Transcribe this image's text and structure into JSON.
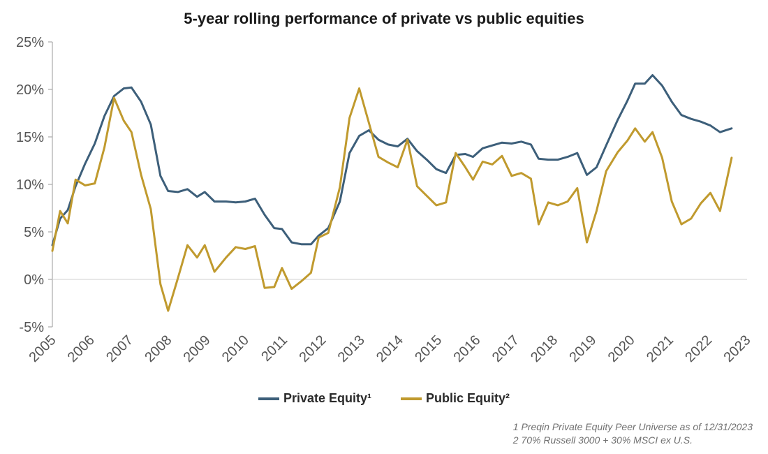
{
  "chart_data": {
    "type": "line",
    "title": "5-year rolling performance of private vs public equities",
    "ylim": [
      -5,
      25
    ],
    "yticks": [
      "25%",
      "20%",
      "15%",
      "10%",
      "5%",
      "0%",
      "-5%"
    ],
    "ytick_values": [
      25,
      20,
      15,
      10,
      5,
      0,
      -5
    ],
    "xlim": [
      2005,
      2023
    ],
    "xticks": [
      "2005",
      "2006",
      "2007",
      "2008",
      "2009",
      "2010",
      "2011",
      "2012",
      "2013",
      "2014",
      "2015",
      "2016",
      "2017",
      "2018",
      "2019",
      "2020",
      "2021",
      "2022",
      "2023"
    ],
    "legend_position": "bottom-center",
    "grid": "zero-line only",
    "series": [
      {
        "name": "Private Equity¹",
        "color": "#3d5f7a",
        "points": [
          [
            2005.0,
            3.6
          ],
          [
            2005.2,
            6.4
          ],
          [
            2005.4,
            7.3
          ],
          [
            2005.6,
            9.8
          ],
          [
            2005.85,
            12.2
          ],
          [
            2006.1,
            14.3
          ],
          [
            2006.35,
            17.2
          ],
          [
            2006.6,
            19.3
          ],
          [
            2006.85,
            20.1
          ],
          [
            2007.05,
            20.2
          ],
          [
            2007.3,
            18.7
          ],
          [
            2007.55,
            16.3
          ],
          [
            2007.8,
            10.9
          ],
          [
            2008.0,
            9.3
          ],
          [
            2008.25,
            9.2
          ],
          [
            2008.5,
            9.5
          ],
          [
            2008.75,
            8.7
          ],
          [
            2008.95,
            9.2
          ],
          [
            2009.2,
            8.2
          ],
          [
            2009.5,
            8.2
          ],
          [
            2009.75,
            8.1
          ],
          [
            2010.0,
            8.2
          ],
          [
            2010.25,
            8.5
          ],
          [
            2010.5,
            6.8
          ],
          [
            2010.75,
            5.4
          ],
          [
            2010.95,
            5.3
          ],
          [
            2011.2,
            3.9
          ],
          [
            2011.45,
            3.7
          ],
          [
            2011.7,
            3.7
          ],
          [
            2011.9,
            4.6
          ],
          [
            2012.15,
            5.4
          ],
          [
            2012.45,
            8.2
          ],
          [
            2012.7,
            13.3
          ],
          [
            2012.95,
            15.1
          ],
          [
            2013.2,
            15.7
          ],
          [
            2013.45,
            14.7
          ],
          [
            2013.7,
            14.2
          ],
          [
            2013.95,
            14.0
          ],
          [
            2014.2,
            14.8
          ],
          [
            2014.45,
            13.5
          ],
          [
            2014.7,
            12.6
          ],
          [
            2014.95,
            11.6
          ],
          [
            2015.2,
            11.2
          ],
          [
            2015.45,
            13.1
          ],
          [
            2015.7,
            13.2
          ],
          [
            2015.9,
            12.9
          ],
          [
            2016.15,
            13.8
          ],
          [
            2016.4,
            14.1
          ],
          [
            2016.65,
            14.4
          ],
          [
            2016.9,
            14.3
          ],
          [
            2017.15,
            14.5
          ],
          [
            2017.4,
            14.2
          ],
          [
            2017.6,
            12.7
          ],
          [
            2017.85,
            12.6
          ],
          [
            2018.1,
            12.6
          ],
          [
            2018.35,
            12.9
          ],
          [
            2018.6,
            13.3
          ],
          [
            2018.85,
            11.0
          ],
          [
            2019.1,
            11.8
          ],
          [
            2019.35,
            14.1
          ],
          [
            2019.65,
            16.8
          ],
          [
            2019.9,
            18.8
          ],
          [
            2020.1,
            20.6
          ],
          [
            2020.35,
            20.6
          ],
          [
            2020.55,
            21.5
          ],
          [
            2020.8,
            20.4
          ],
          [
            2021.05,
            18.7
          ],
          [
            2021.3,
            17.3
          ],
          [
            2021.55,
            16.9
          ],
          [
            2021.8,
            16.6
          ],
          [
            2022.05,
            16.2
          ],
          [
            2022.3,
            15.5
          ],
          [
            2022.6,
            15.9
          ]
        ]
      },
      {
        "name": "Public Equity²",
        "color": "#c09a2e",
        "points": [
          [
            2005.0,
            3.0
          ],
          [
            2005.2,
            7.2
          ],
          [
            2005.4,
            5.9
          ],
          [
            2005.6,
            10.5
          ],
          [
            2005.85,
            9.9
          ],
          [
            2006.1,
            10.1
          ],
          [
            2006.35,
            13.9
          ],
          [
            2006.6,
            19.1
          ],
          [
            2006.85,
            16.7
          ],
          [
            2007.05,
            15.5
          ],
          [
            2007.3,
            11.0
          ],
          [
            2007.55,
            7.4
          ],
          [
            2007.8,
            -0.5
          ],
          [
            2008.0,
            -3.3
          ],
          [
            2008.25,
            0.1
          ],
          [
            2008.5,
            3.6
          ],
          [
            2008.75,
            2.3
          ],
          [
            2008.95,
            3.6
          ],
          [
            2009.2,
            0.8
          ],
          [
            2009.5,
            2.3
          ],
          [
            2009.75,
            3.4
          ],
          [
            2010.0,
            3.2
          ],
          [
            2010.25,
            3.5
          ],
          [
            2010.5,
            -0.9
          ],
          [
            2010.75,
            -0.8
          ],
          [
            2010.95,
            1.2
          ],
          [
            2011.2,
            -1.0
          ],
          [
            2011.45,
            -0.2
          ],
          [
            2011.7,
            0.7
          ],
          [
            2011.9,
            4.4
          ],
          [
            2012.15,
            4.9
          ],
          [
            2012.45,
            9.7
          ],
          [
            2012.7,
            17.0
          ],
          [
            2012.95,
            20.1
          ],
          [
            2013.2,
            16.5
          ],
          [
            2013.45,
            12.9
          ],
          [
            2013.7,
            12.3
          ],
          [
            2013.95,
            11.8
          ],
          [
            2014.2,
            14.7
          ],
          [
            2014.45,
            9.8
          ],
          [
            2014.7,
            8.8
          ],
          [
            2014.95,
            7.8
          ],
          [
            2015.2,
            8.1
          ],
          [
            2015.45,
            13.3
          ],
          [
            2015.7,
            11.8
          ],
          [
            2015.9,
            10.5
          ],
          [
            2016.15,
            12.4
          ],
          [
            2016.4,
            12.1
          ],
          [
            2016.65,
            13.0
          ],
          [
            2016.9,
            10.9
          ],
          [
            2017.15,
            11.2
          ],
          [
            2017.4,
            10.6
          ],
          [
            2017.6,
            5.8
          ],
          [
            2017.85,
            8.1
          ],
          [
            2018.1,
            7.8
          ],
          [
            2018.35,
            8.2
          ],
          [
            2018.6,
            9.6
          ],
          [
            2018.85,
            3.9
          ],
          [
            2019.1,
            7.2
          ],
          [
            2019.35,
            11.4
          ],
          [
            2019.65,
            13.4
          ],
          [
            2019.9,
            14.6
          ],
          [
            2020.1,
            15.9
          ],
          [
            2020.35,
            14.5
          ],
          [
            2020.55,
            15.5
          ],
          [
            2020.8,
            12.8
          ],
          [
            2021.05,
            8.2
          ],
          [
            2021.3,
            5.8
          ],
          [
            2021.55,
            6.4
          ],
          [
            2021.8,
            8.0
          ],
          [
            2022.05,
            9.1
          ],
          [
            2022.3,
            7.2
          ],
          [
            2022.6,
            12.8
          ]
        ]
      }
    ]
  },
  "footnotes": {
    "note1": "1 Preqin Private Equity Peer Universe as of 12/31/2023",
    "note2": "2 70% Russell 3000 + 30% MSCI ex U.S."
  }
}
